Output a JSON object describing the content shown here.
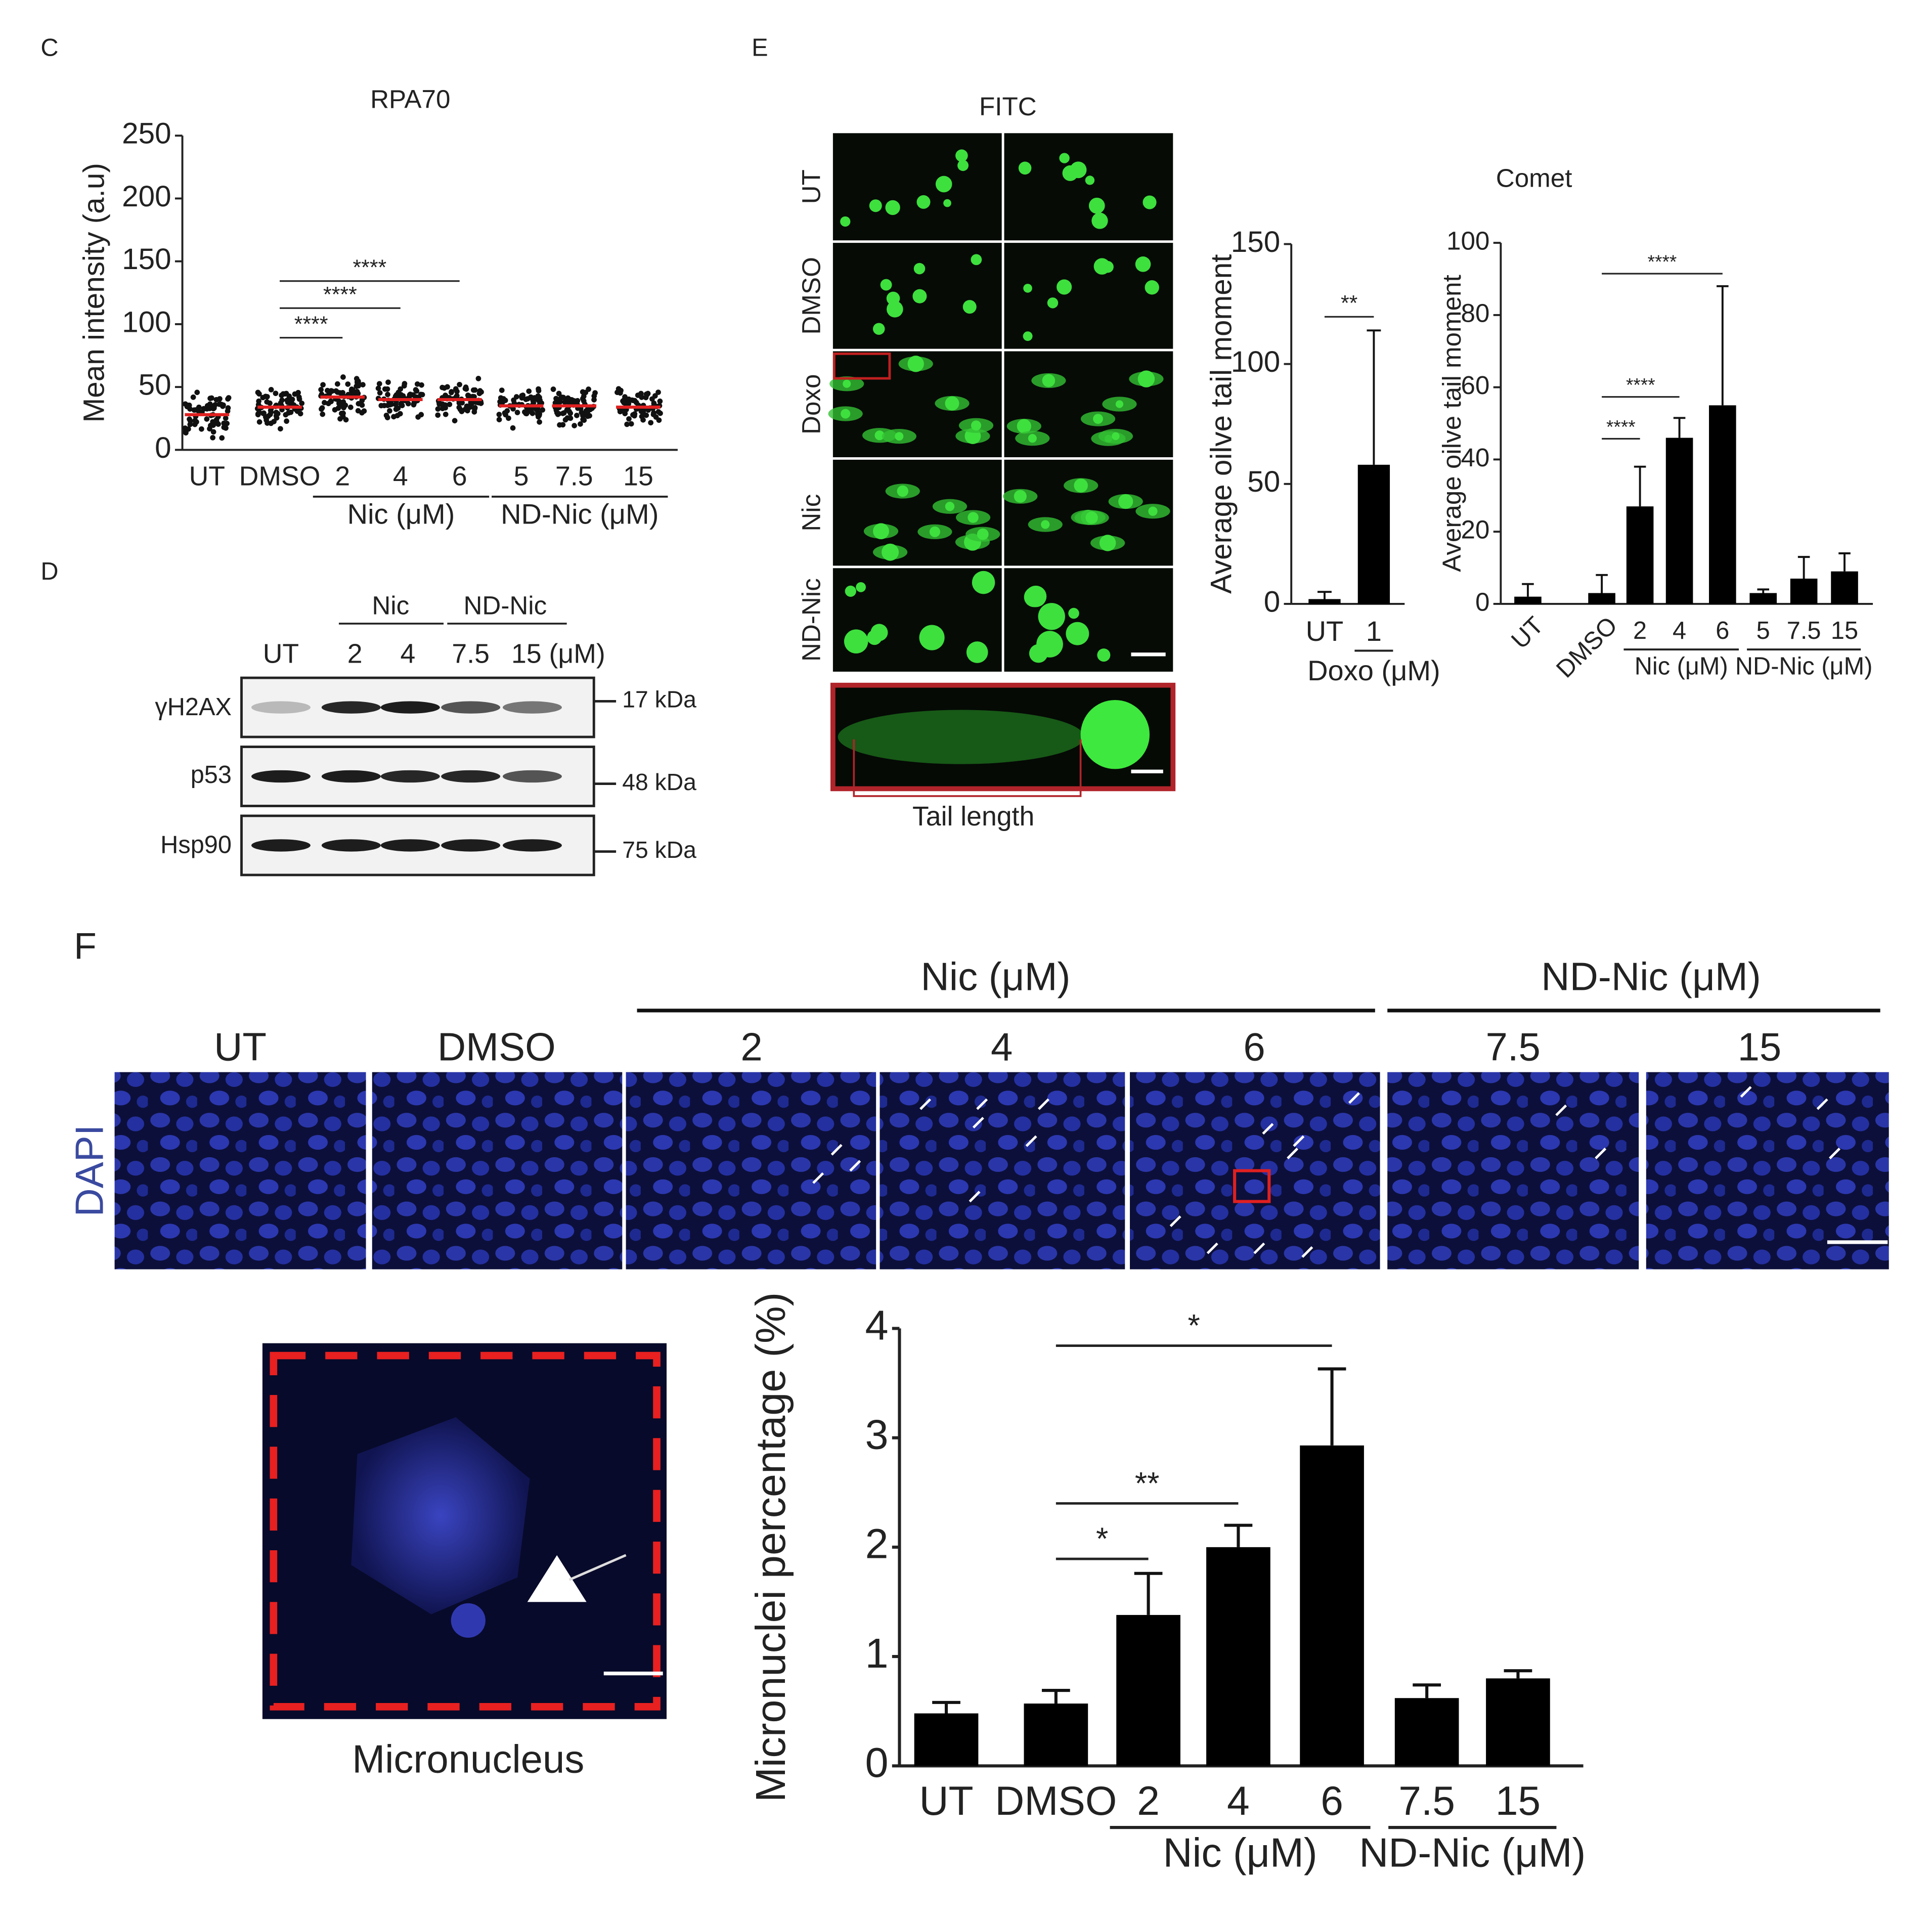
{
  "figure": {
    "panels": [
      "C",
      "D",
      "E",
      "F"
    ],
    "blot": {
      "groups": [
        "Nic",
        "ND-Nic"
      ],
      "lanes": [
        "UT",
        "2",
        "4",
        "7.5",
        "15 (μM)"
      ],
      "rows": [
        {
          "label": "γH2AX",
          "marker": "17 kDa"
        },
        {
          "label": "p53",
          "marker": "48 kDa"
        },
        {
          "label": "Hsp90",
          "marker": "75 kDa"
        }
      ]
    },
    "comet_images": {
      "title": "FITC",
      "rows": [
        "UT",
        "DMSO",
        "Doxo",
        "Nic",
        "ND-Nic"
      ],
      "inset": "Tail length"
    },
    "dapi_images": {
      "stain": "DAPI",
      "columns": [
        "UT",
        "DMSO",
        "2",
        "4",
        "6",
        "7.5",
        "15"
      ],
      "groups": [
        "Nic (μM)",
        "ND-Nic (μM)"
      ],
      "inset": "Micronucleus"
    }
  },
  "chart_data": [
    {
      "type": "dot",
      "title": "RPA70",
      "y_label": "Mean intensity (a.u)",
      "categories": [
        "UT",
        "DMSO",
        "2",
        "4",
        "6",
        "5",
        "7.5",
        "15"
      ],
      "values": [
        28,
        34,
        42,
        40,
        40,
        35,
        35,
        34
      ],
      "color": "#e02020",
      "ylim": [
        0,
        250
      ],
      "yticks": [
        0,
        50,
        100,
        150,
        200,
        250
      ],
      "groups": [
        {
          "label": "Nic (μM)",
          "categories": [
            "2",
            "4",
            "6"
          ]
        },
        {
          "label": "ND-Nic (μM)",
          "categories": [
            "5",
            "7.5",
            "15"
          ]
        }
      ],
      "annotations": [
        {
          "text": "****",
          "from": "DMSO",
          "to": "2"
        },
        {
          "text": "****",
          "from": "DMSO",
          "to": "4"
        },
        {
          "text": "****",
          "from": "DMSO",
          "to": "6"
        }
      ]
    },
    {
      "type": "bar",
      "y_label": "Average oilve tail moment",
      "categories": [
        "UT",
        "1"
      ],
      "values": [
        2,
        58
      ],
      "errors": [
        3,
        56
      ],
      "color": "#000000",
      "ylim": [
        0,
        150
      ],
      "yticks": [
        0,
        50,
        100,
        150
      ],
      "groups": [
        {
          "label": "Doxo (μM)",
          "categories": [
            "1"
          ]
        }
      ],
      "annotations": [
        {
          "text": "**",
          "from": "UT",
          "to": "1"
        }
      ]
    },
    {
      "type": "bar",
      "title": "Comet",
      "y_label": "Average oilve tail moment",
      "categories": [
        "UT",
        "DMSO",
        "2",
        "4",
        "6",
        "5",
        "7.5",
        "15"
      ],
      "values": [
        2,
        3,
        27,
        46,
        55,
        3,
        7,
        9
      ],
      "errors": [
        3.5,
        5,
        11,
        5.5,
        33,
        1,
        6,
        5
      ],
      "color": "#000000",
      "ylim": [
        0,
        100
      ],
      "yticks": [
        0,
        20,
        40,
        60,
        80,
        100
      ],
      "groups": [
        {
          "label": "Nic (μM)",
          "categories": [
            "2",
            "4",
            "6"
          ]
        },
        {
          "label": "ND-Nic (μM)",
          "categories": [
            "5",
            "7.5",
            "15"
          ]
        }
      ],
      "annotations": [
        {
          "text": "****",
          "from": "DMSO",
          "to": "6"
        },
        {
          "text": "****",
          "from": "DMSO",
          "to": "4"
        },
        {
          "text": "****",
          "from": "DMSO",
          "to": "2"
        }
      ]
    },
    {
      "type": "bar",
      "y_label": "Micronuclei percentage (%)",
      "categories": [
        "UT",
        "DMSO",
        "2",
        "4",
        "6",
        "7.5",
        "15"
      ],
      "values": [
        0.48,
        0.57,
        1.38,
        2.0,
        2.93,
        0.62,
        0.8
      ],
      "errors": [
        0.1,
        0.12,
        0.38,
        0.2,
        0.7,
        0.12,
        0.07
      ],
      "color": "#000000",
      "ylim": [
        0,
        4
      ],
      "yticks": [
        0,
        1,
        2,
        3,
        4
      ],
      "groups": [
        {
          "label": "Nic (μM)",
          "categories": [
            "2",
            "4",
            "6"
          ]
        },
        {
          "label": "ND-Nic (μM)",
          "categories": [
            "7.5",
            "15"
          ]
        }
      ],
      "annotations": [
        {
          "text": "*",
          "from": "DMSO",
          "to": "6"
        },
        {
          "text": "**",
          "from": "DMSO",
          "to": "4"
        },
        {
          "text": "*",
          "from": "DMSO",
          "to": "2"
        }
      ]
    }
  ]
}
